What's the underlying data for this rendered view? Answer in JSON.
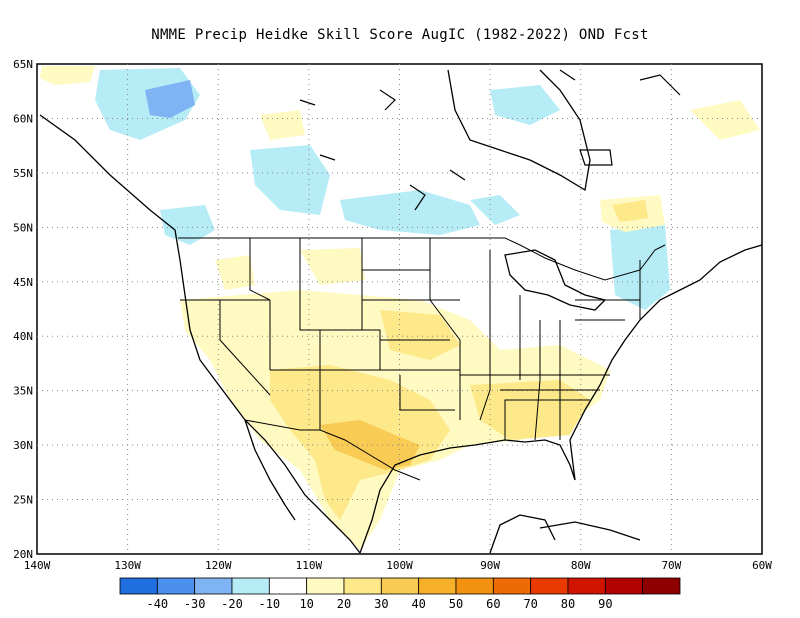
{
  "title": "NMME Precip Heidke Skill Score AugIC (1982-2022) OND Fcst",
  "map": {
    "lat_labels": [
      "65N",
      "60N",
      "55N",
      "50N",
      "45N",
      "40N",
      "35N",
      "30N",
      "25N",
      "20N"
    ],
    "lon_labels": [
      "140W",
      "130W",
      "120W",
      "110W",
      "100W",
      "90W",
      "80W",
      "70W",
      "60W"
    ],
    "extent": {
      "lon_min": -140,
      "lon_max": -60,
      "lat_min": 20,
      "lat_max": 65
    },
    "gridlines": "dotted"
  },
  "colorbar": {
    "colors": [
      "#1f6fe0",
      "#4a90ec",
      "#7fb3f3",
      "#b5ecf5",
      "#ffffff",
      "#fffac2",
      "#fde88a",
      "#f8cb55",
      "#f6b02a",
      "#f39210",
      "#ee6a04",
      "#e83a00",
      "#d11400",
      "#b30000",
      "#8f0000"
    ],
    "labels": [
      "-40",
      "-30",
      "-20",
      "-10",
      "10",
      "20",
      "30",
      "40",
      "50",
      "60",
      "70",
      "80",
      "90"
    ]
  },
  "colors": {
    "light_yellow": "#fffac2",
    "yellow": "#fde88a",
    "orange": "#f8cb55",
    "light_blue": "#b5ecf5",
    "blue": "#7fb3f3"
  }
}
